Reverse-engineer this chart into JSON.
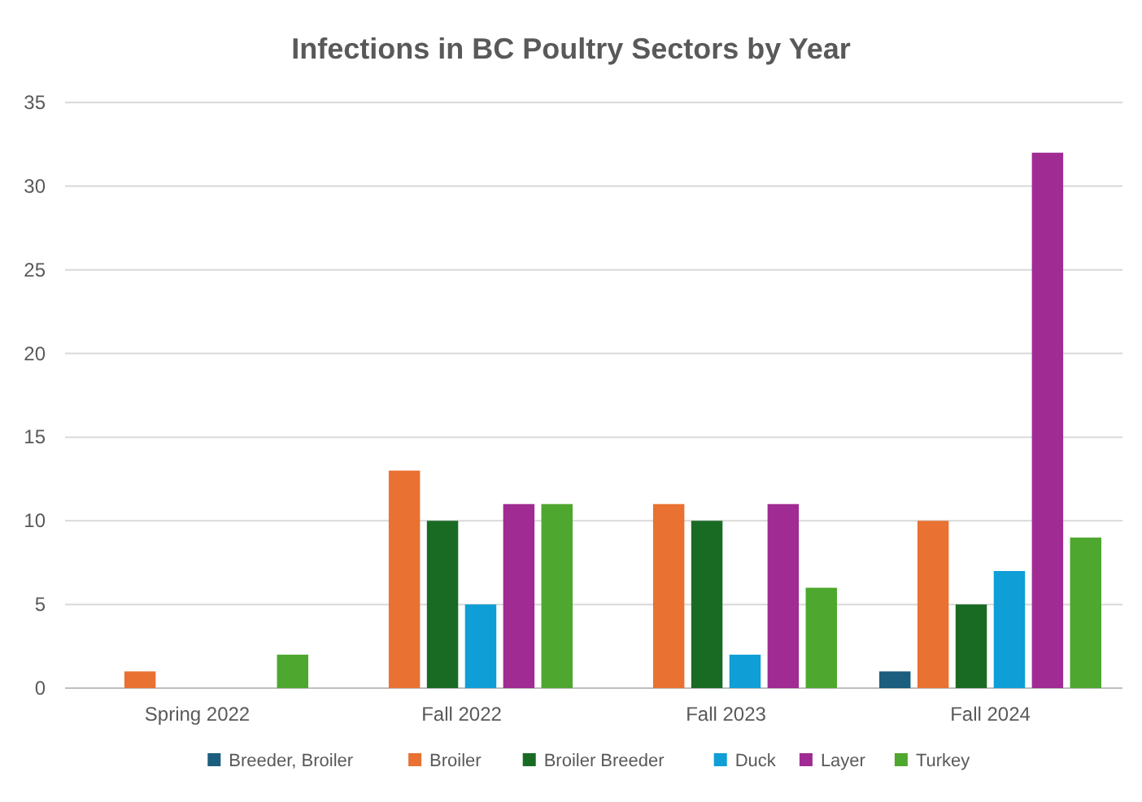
{
  "chart_data": {
    "type": "bar",
    "title": "Infections in BC Poultry Sectors by Year",
    "categories": [
      "Spring 2022",
      "Fall 2022",
      "Fall 2023",
      "Fall 2024"
    ],
    "series": [
      {
        "name": "Breeder, Broiler",
        "color": "#1b5e7e",
        "values": [
          0,
          0,
          0,
          1
        ]
      },
      {
        "name": "Broiler",
        "color": "#e97132",
        "values": [
          1,
          13,
          11,
          10
        ]
      },
      {
        "name": "Broiler Breeder",
        "color": "#196b24",
        "values": [
          0,
          10,
          10,
          5
        ]
      },
      {
        "name": "Duck",
        "color": "#0f9ed5",
        "values": [
          0,
          5,
          2,
          7
        ]
      },
      {
        "name": "Layer",
        "color": "#a02b93",
        "values": [
          0,
          11,
          11,
          32
        ]
      },
      {
        "name": "Turkey",
        "color": "#4ea72e",
        "values": [
          2,
          11,
          6,
          9
        ]
      }
    ],
    "ylim": [
      0,
      35
    ],
    "yticks": [
      0,
      5,
      10,
      15,
      20,
      25,
      30,
      35
    ],
    "grid": "y",
    "legend": "bottom"
  }
}
